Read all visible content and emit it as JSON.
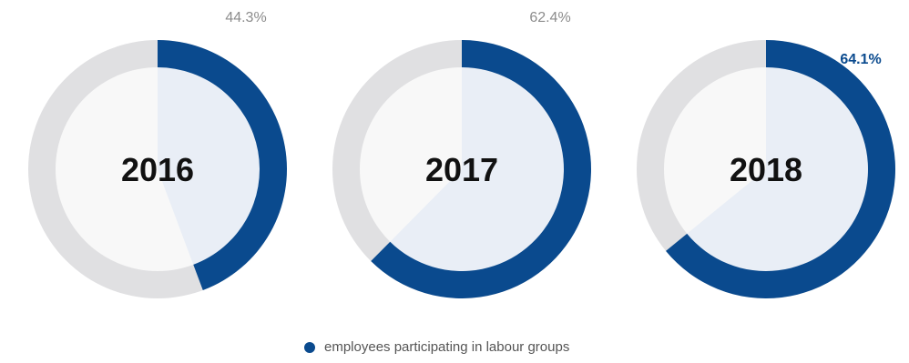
{
  "colors": {
    "accent": "#0a4a8e",
    "track": "#e0e0e2",
    "inner_fill": "#e9eef6",
    "inner_base": "#f8f8f8",
    "highlight_label": "#0a4a8e"
  },
  "legend": {
    "label": "employees participating in labour groups",
    "color": "#0a4a8e"
  },
  "chart_data": {
    "type": "pie",
    "style": "donut",
    "series_name": "employees participating in labour groups",
    "items": [
      {
        "category": "2016",
        "value": 44.3,
        "label": "44.3%"
      },
      {
        "category": "2017",
        "value": 62.4,
        "label": "62.4%"
      },
      {
        "category": "2018",
        "value": 64.1,
        "label": "64.1%",
        "highlight": true
      }
    ],
    "max_value": 100,
    "legend_position": "bottom-center"
  }
}
